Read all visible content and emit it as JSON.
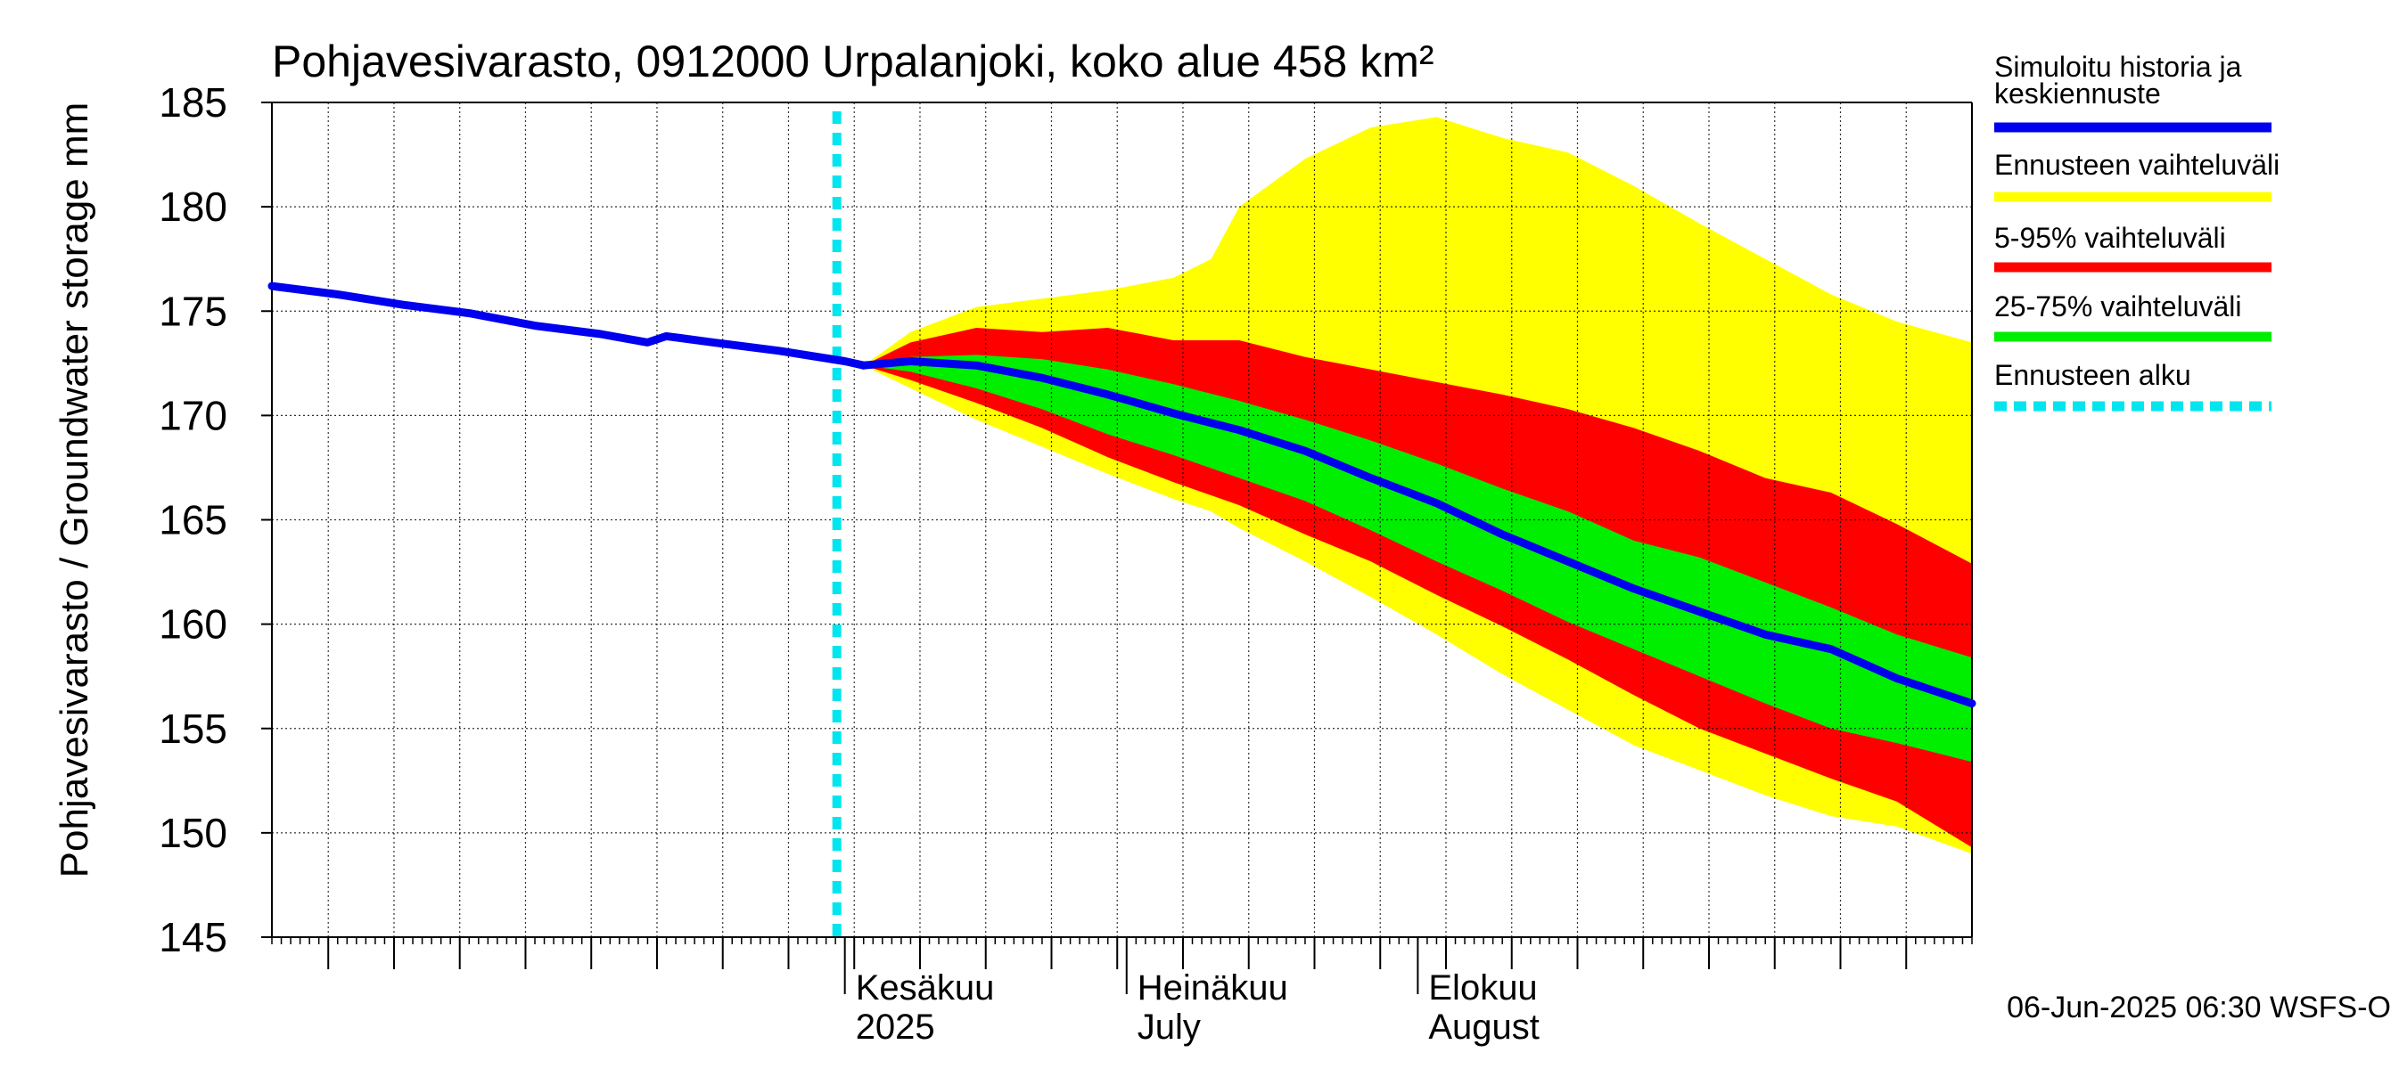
{
  "chart_data": {
    "type": "area",
    "title": "Pohjavesivarasto, 0912000 Urpalanjoki, koko alue 458 km²",
    "ylabel": "Pohjavesivarasto / Groundwater storage   mm",
    "ylim": [
      145,
      185
    ],
    "yticks": [
      145,
      150,
      155,
      160,
      165,
      170,
      175,
      180,
      185
    ],
    "xlim": [
      "2025-04-01",
      "2025-09-29"
    ],
    "month_labels": [
      {
        "date": "2025-06-01",
        "line1": "Kesäkuu",
        "line2": "2025"
      },
      {
        "date": "2025-07-01",
        "line1": "Heinäkuu",
        "line2": "July"
      },
      {
        "date": "2025-08-01",
        "line1": "Elokuu",
        "line2": "August"
      }
    ],
    "forecast_start": "2025-06-01",
    "history": {
      "name": "Simuloitu historia ja keskiennuste",
      "x": [
        "2025-04-01",
        "2025-04-08",
        "2025-04-15",
        "2025-04-22",
        "2025-04-29",
        "2025-05-06",
        "2025-05-11",
        "2025-05-13",
        "2025-05-18",
        "2025-05-25",
        "2025-06-01",
        "2025-06-03"
      ],
      "y": [
        176.2,
        175.8,
        175.3,
        174.9,
        174.3,
        173.9,
        173.5,
        173.8,
        173.5,
        173.1,
        172.6,
        172.4
      ]
    },
    "median": {
      "name": "Simuloitu historia ja keskiennuste",
      "x": [
        "2025-06-03",
        "2025-06-08",
        "2025-06-15",
        "2025-06-22",
        "2025-06-29",
        "2025-07-06",
        "2025-07-13",
        "2025-07-20",
        "2025-07-27",
        "2025-08-03",
        "2025-08-10",
        "2025-08-17",
        "2025-08-24",
        "2025-08-31",
        "2025-09-07",
        "2025-09-14",
        "2025-09-21",
        "2025-09-29"
      ],
      "y": [
        172.4,
        172.6,
        172.4,
        171.8,
        171.0,
        170.1,
        169.3,
        168.3,
        167.0,
        165.8,
        164.3,
        163.0,
        161.7,
        160.6,
        159.5,
        158.8,
        157.4,
        156.2
      ]
    },
    "bands": [
      {
        "name": "Ennusteen vaihteluväli",
        "color": "#ffff00",
        "x": [
          "2025-06-03",
          "2025-06-08",
          "2025-06-15",
          "2025-06-22",
          "2025-06-29",
          "2025-07-06",
          "2025-07-10",
          "2025-07-13",
          "2025-07-20",
          "2025-07-27",
          "2025-08-03",
          "2025-08-10",
          "2025-08-17",
          "2025-08-24",
          "2025-08-31",
          "2025-09-07",
          "2025-09-14",
          "2025-09-21",
          "2025-09-29"
        ],
        "upper": [
          172.4,
          174.0,
          175.2,
          175.6,
          176.0,
          176.6,
          177.5,
          180.0,
          182.3,
          183.8,
          184.3,
          183.3,
          182.6,
          181.0,
          179.2,
          177.5,
          175.8,
          174.5,
          173.5
        ],
        "lower": [
          172.4,
          171.3,
          169.8,
          168.5,
          167.2,
          166.0,
          165.4,
          164.6,
          163.0,
          161.3,
          159.5,
          157.6,
          155.9,
          154.2,
          153.0,
          151.8,
          150.8,
          150.3,
          149.0
        ]
      },
      {
        "name": "5-95% vaihteluväli",
        "color": "#ff0000",
        "x": [
          "2025-06-03",
          "2025-06-08",
          "2025-06-15",
          "2025-06-22",
          "2025-06-29",
          "2025-07-06",
          "2025-07-13",
          "2025-07-20",
          "2025-07-27",
          "2025-08-03",
          "2025-08-10",
          "2025-08-17",
          "2025-08-24",
          "2025-08-31",
          "2025-09-07",
          "2025-09-14",
          "2025-09-21",
          "2025-09-29"
        ],
        "upper": [
          172.4,
          173.5,
          174.2,
          174.0,
          174.2,
          173.6,
          173.6,
          172.8,
          172.2,
          171.6,
          171.0,
          170.3,
          169.4,
          168.3,
          167.0,
          166.3,
          164.8,
          162.9
        ],
        "lower": [
          172.4,
          171.7,
          170.6,
          169.4,
          168.0,
          166.8,
          165.7,
          164.3,
          163.0,
          161.4,
          159.9,
          158.3,
          156.6,
          155.0,
          153.8,
          152.6,
          151.5,
          149.3
        ]
      },
      {
        "name": "25-75% vaihteluväli",
        "color": "#00ee00",
        "x": [
          "2025-06-03",
          "2025-06-08",
          "2025-06-15",
          "2025-06-22",
          "2025-06-29",
          "2025-07-06",
          "2025-07-13",
          "2025-07-20",
          "2025-07-27",
          "2025-08-03",
          "2025-08-10",
          "2025-08-17",
          "2025-08-24",
          "2025-08-31",
          "2025-09-07",
          "2025-09-14",
          "2025-09-21",
          "2025-09-29"
        ],
        "upper": [
          172.4,
          172.8,
          172.9,
          172.7,
          172.2,
          171.5,
          170.7,
          169.8,
          168.8,
          167.7,
          166.5,
          165.4,
          164.0,
          163.2,
          162.0,
          160.8,
          159.5,
          158.4
        ],
        "lower": [
          172.4,
          172.1,
          171.3,
          170.3,
          169.1,
          168.1,
          167.0,
          165.9,
          164.5,
          163.0,
          161.6,
          160.1,
          158.8,
          157.5,
          156.2,
          155.0,
          154.3,
          153.4
        ]
      }
    ],
    "legend": [
      {
        "label": "Simuloitu historia ja keskiennuste",
        "color": "#0000ee",
        "style": "solid"
      },
      {
        "label": "Ennusteen vaihteluväli",
        "color": "#ffff00",
        "style": "solid"
      },
      {
        "label": "5-95% vaihteluväli",
        "color": "#ff0000",
        "style": "solid"
      },
      {
        "label": "25-75% vaihteluväli",
        "color": "#00ee00",
        "style": "solid"
      },
      {
        "label": "Ennusteen alku",
        "color": "#00e5ee",
        "style": "dashed"
      }
    ],
    "legend_position": "right",
    "grid": true,
    "footer": "06-Jun-2025 06:30 WSFS-O"
  }
}
